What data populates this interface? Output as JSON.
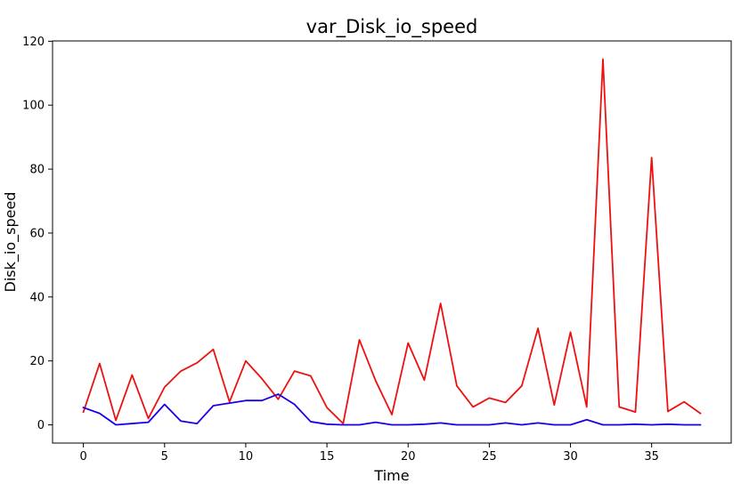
{
  "chart_data": {
    "type": "line",
    "title": "var_Disk_io_speed",
    "xlabel": "Time",
    "ylabel": "Disk_io_speed",
    "xlim": [
      -1.9,
      39.9
    ],
    "ylim": [
      -5.7,
      120.1
    ],
    "xticks": [
      0,
      5,
      10,
      15,
      20,
      25,
      30,
      35
    ],
    "yticks": [
      0,
      20,
      40,
      60,
      80,
      100,
      120
    ],
    "grid": false,
    "x": [
      0,
      1,
      2,
      3,
      4,
      5,
      6,
      7,
      8,
      9,
      10,
      11,
      12,
      13,
      14,
      15,
      16,
      17,
      18,
      19,
      20,
      21,
      22,
      23,
      24,
      25,
      26,
      27,
      28,
      29,
      30,
      31,
      32,
      33,
      34,
      35,
      36,
      37,
      38
    ],
    "series": [
      {
        "color": "#ee1111",
        "values": [
          4.0,
          19.2,
          1.4,
          15.6,
          2.0,
          11.8,
          16.8,
          19.4,
          23.6,
          7.2,
          20.0,
          14.4,
          8.0,
          16.8,
          15.3,
          5.4,
          0.4,
          26.6,
          13.8,
          3.2,
          25.6,
          14.0,
          38.0,
          12.2,
          5.6,
          8.4,
          7.0,
          12.2,
          30.2,
          6.2,
          29.0,
          5.6,
          114.4,
          5.6,
          4.0,
          83.6,
          4.2,
          7.2,
          3.6
        ]
      },
      {
        "color": "#1a00e8",
        "values": [
          5.4,
          3.6,
          0.0,
          0.4,
          0.8,
          6.4,
          1.2,
          0.4,
          6.0,
          6.8,
          7.6,
          7.6,
          9.6,
          6.4,
          1.0,
          0.2,
          0.0,
          0.0,
          0.8,
          0.0,
          0.0,
          0.2,
          0.6,
          0.0,
          0.0,
          0.0,
          0.6,
          0.0,
          0.6,
          0.0,
          0.0,
          1.6,
          0.0,
          0.0,
          0.2,
          0.0,
          0.2,
          0.0,
          0.0
        ]
      }
    ]
  }
}
